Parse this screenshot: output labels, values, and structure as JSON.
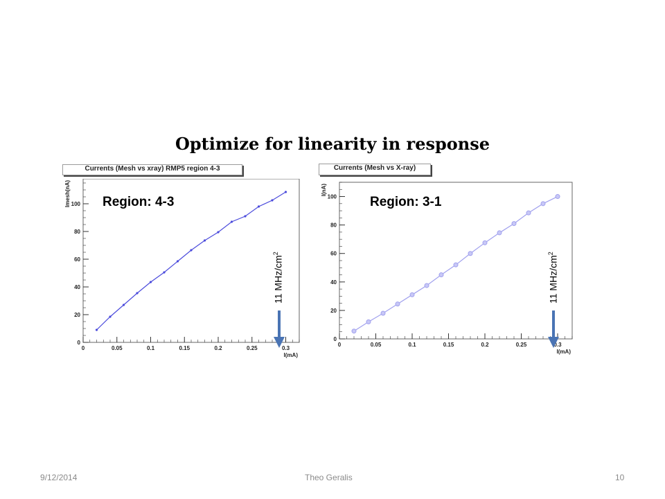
{
  "slide": {
    "title": "Optimize for linearity in response",
    "footer_date": "9/12/2014",
    "footer_author": "Theo Geralis",
    "page_number": "10"
  },
  "annotations": {
    "rate_text": "11 MHz/cm",
    "rate_exponent": "2",
    "arrow_color": "#4a74b4"
  },
  "chart_data": [
    {
      "type": "line",
      "title": "Currents (Mesh vs xray) RMP5 region 4-3",
      "region_label": "Region: 4-3",
      "xlabel": "I(mA)",
      "ylabel": "Imesh(nA)",
      "xlim": [
        0,
        0.32
      ],
      "ylim": [
        0,
        118
      ],
      "xticks": [
        0,
        0.05,
        0.1,
        0.15,
        0.2,
        0.25,
        0.3
      ],
      "yticks": [
        0,
        20,
        40,
        60,
        80,
        100
      ],
      "grid": false,
      "line_color": "#4b4bdc",
      "marker": "dot",
      "series": [
        {
          "x": [
            0.02,
            0.04,
            0.06,
            0.08,
            0.1,
            0.12,
            0.14,
            0.16,
            0.18,
            0.2,
            0.22,
            0.24,
            0.26,
            0.28,
            0.3
          ],
          "values": [
            9,
            18.5,
            27,
            35.5,
            43.5,
            50.5,
            58.5,
            66.5,
            73.5,
            79.5,
            87,
            91,
            98,
            102.5,
            108.5
          ]
        }
      ]
    },
    {
      "type": "line",
      "title": "Currents (Mesh vs X-ray)",
      "region_label": "Region: 3-1",
      "xlabel": "I(mA)",
      "ylabel": "I(nA)",
      "xlim": [
        0,
        0.32
      ],
      "ylim": [
        0,
        110
      ],
      "xticks": [
        0,
        0.05,
        0.1,
        0.15,
        0.2,
        0.25,
        0.3
      ],
      "yticks": [
        0,
        20,
        40,
        60,
        80,
        100
      ],
      "grid": false,
      "line_color": "#a0a0ee",
      "marker": "circle",
      "series": [
        {
          "x": [
            0.02,
            0.04,
            0.06,
            0.08,
            0.1,
            0.12,
            0.14,
            0.16,
            0.18,
            0.2,
            0.22,
            0.24,
            0.26,
            0.28,
            0.3
          ],
          "values": [
            5.5,
            12,
            18,
            24.5,
            31,
            37.5,
            45,
            52,
            60,
            67.5,
            74.5,
            81,
            88.5,
            95,
            100
          ]
        }
      ]
    }
  ]
}
